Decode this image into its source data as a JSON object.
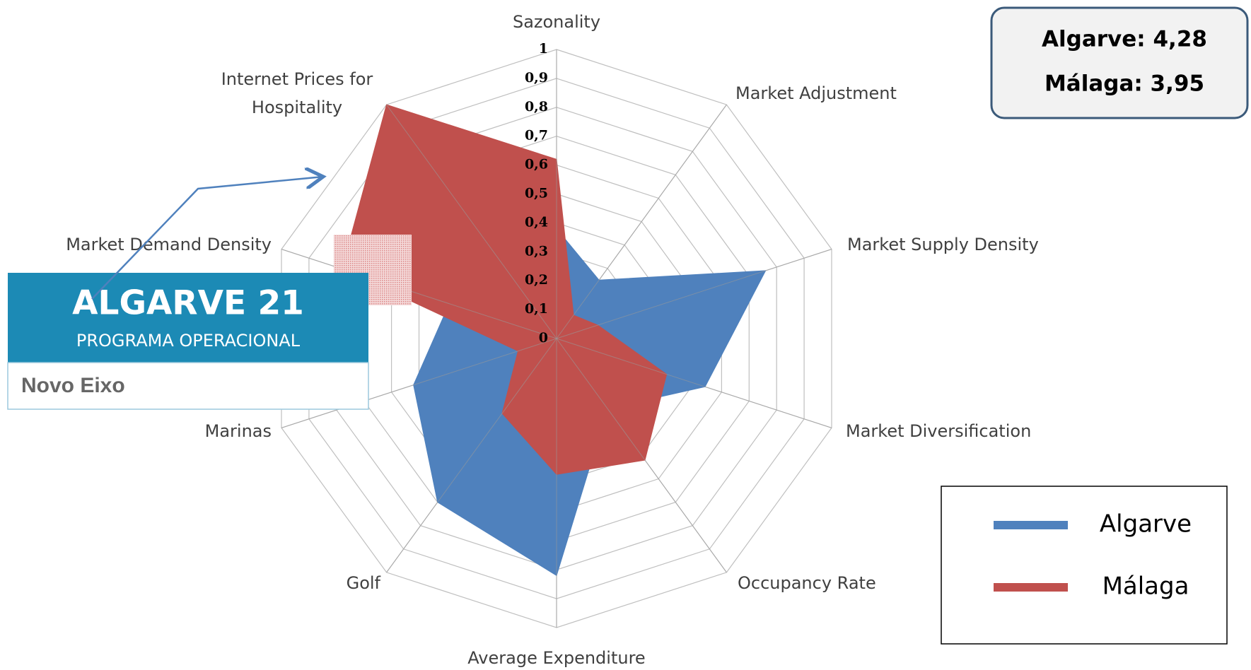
{
  "chart_data": {
    "type": "radar",
    "categories": [
      "Sazonality",
      "Market Adjustment",
      "Market Supply Density",
      "Market Diversification",
      "Occupancy Rate",
      "Average Expenditure",
      "Golf",
      "Marinas",
      "Market Demand Density",
      "Internet Prices for Hospitality"
    ],
    "series": [
      {
        "name": "Algarve",
        "color": "#4f81bd",
        "values": [
          0.38,
          0.25,
          0.76,
          0.54,
          0.3,
          0.82,
          0.7,
          0.52,
          0.39,
          0.1
        ]
      },
      {
        "name": "Málaga",
        "color": "#c0504d",
        "values": [
          0.62,
          0.1,
          0.15,
          0.4,
          0.52,
          0.47,
          0.32,
          0.14,
          0.78,
          1
        ]
      }
    ],
    "rlim": [
      0,
      1
    ],
    "rticks": [
      0,
      {
        "value": 0.1,
        "label": "0,1"
      },
      {
        "value": 0.2,
        "label": "0,2"
      },
      {
        "value": 0.3,
        "label": "0,3"
      },
      {
        "value": 0.4,
        "label": "0,4"
      },
      {
        "value": 0.5,
        "label": "0,5"
      },
      {
        "value": 0.6,
        "label": "0,6"
      },
      {
        "value": 0.7,
        "label": "0,7"
      },
      {
        "value": 0.8,
        "label": "0,8"
      },
      {
        "value": 0.9,
        "label": "0,9"
      },
      1
    ],
    "grid": true
  },
  "scores": [
    "Algarve: 4,28",
    "Málaga: 3,95"
  ],
  "logo": {
    "title": "ALGARVE 21",
    "subtitle": "PROGRAMA OPERACIONAL",
    "caption": "Novo Eixo"
  }
}
